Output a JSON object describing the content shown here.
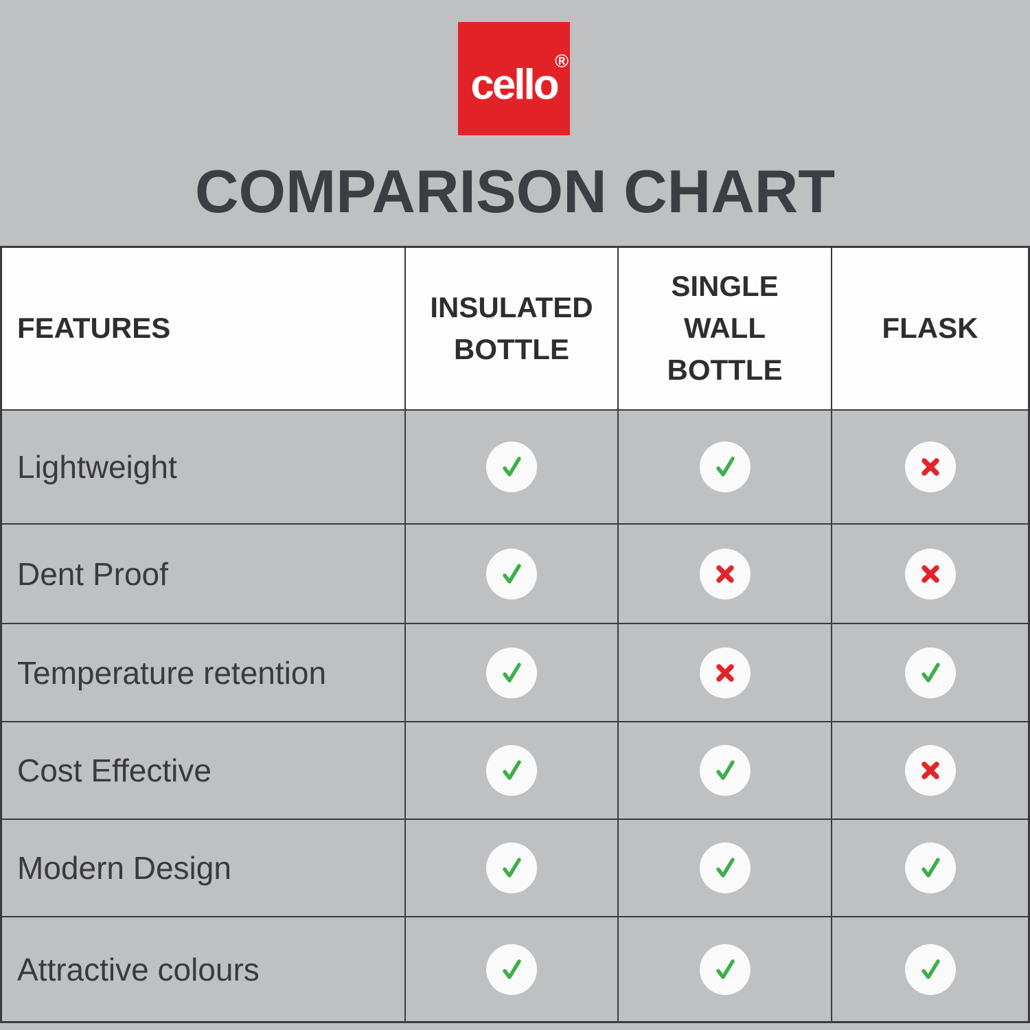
{
  "brand": {
    "logo_text": "cello",
    "registered_mark": "®",
    "logo_background": "#e32227",
    "logo_text_color": "#ffffff"
  },
  "title": "COMPARISON CHART",
  "colors": {
    "background_gray": "#bfc0c2",
    "header_background": "#fdfdfd",
    "border_dark": "#3b3b3d",
    "title_text": "#3b3e43",
    "header_text": "#2e2e30",
    "feature_text": "#3a3a3c",
    "check_green": "#3fae4c",
    "cross_red": "#e2252b",
    "badge_background": "#fafafa"
  },
  "chart_data": {
    "type": "table",
    "title": "COMPARISON CHART",
    "columns": [
      "FEATURES",
      "INSULATED BOTTLE",
      "SINGLE WALL BOTTLE",
      "FLASK"
    ],
    "value_legend": {
      "yes": "green check mark",
      "no": "red cross mark"
    },
    "rows": [
      {
        "feature": "Lightweight",
        "values": [
          "yes",
          "yes",
          "no"
        ]
      },
      {
        "feature": "Dent Proof",
        "values": [
          "yes",
          "no",
          "no"
        ]
      },
      {
        "feature": "Temperature retention",
        "values": [
          "yes",
          "no",
          "yes"
        ]
      },
      {
        "feature": "Cost Effective",
        "values": [
          "yes",
          "yes",
          "no"
        ]
      },
      {
        "feature": "Modern Design",
        "values": [
          "yes",
          "yes",
          "yes"
        ]
      },
      {
        "feature": "Attractive colours",
        "values": [
          "yes",
          "yes",
          "yes"
        ]
      }
    ]
  }
}
